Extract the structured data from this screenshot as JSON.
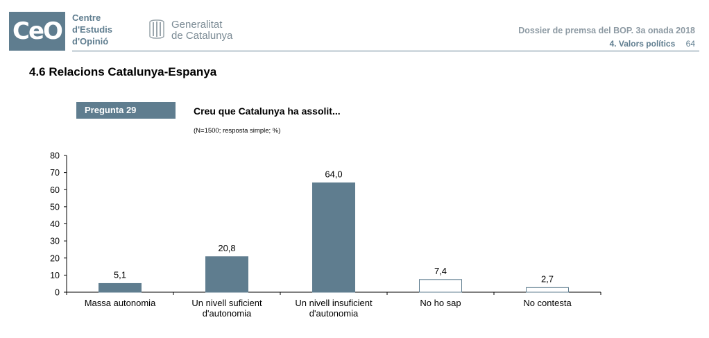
{
  "header": {
    "logo_text": "CeO",
    "org_lines": [
      "Centre",
      "d'Estudis",
      "d'Opinió"
    ],
    "gov_lines": [
      "Generalitat",
      "de Catalunya"
    ],
    "dossier": "Dossier de premsa del BOP. 3a onada 2018",
    "section": "4. Valors polítics",
    "page": "64"
  },
  "page_title": "4.6 Relacions Catalunya-Espanya",
  "question": {
    "badge": "Pregunta 29",
    "text": "Creu que Catalunya ha assolit...",
    "note": "(N=1500; resposta simple; %)"
  },
  "colors": {
    "primary": "#5f7d8f",
    "bar_light": "#ffffff"
  },
  "chart_data": {
    "type": "bar",
    "title": "Creu que Catalunya ha assolit...",
    "xlabel": "",
    "ylabel": "",
    "ylim": [
      0,
      80
    ],
    "yticks": [
      0,
      10,
      20,
      30,
      40,
      50,
      60,
      70,
      80
    ],
    "categories": [
      [
        "Massa autonomia"
      ],
      [
        "Un nivell suficient",
        "d'autonomia"
      ],
      [
        "Un nivell insuficient",
        "d'autonomia"
      ],
      [
        "No ho sap"
      ],
      [
        "No contesta"
      ]
    ],
    "values": [
      5.1,
      20.8,
      64.0,
      7.4,
      2.7
    ],
    "value_labels": [
      "5,1",
      "20,8",
      "64,0",
      "7,4",
      "2,7"
    ],
    "filled": [
      true,
      true,
      true,
      false,
      false
    ],
    "grid": false
  }
}
